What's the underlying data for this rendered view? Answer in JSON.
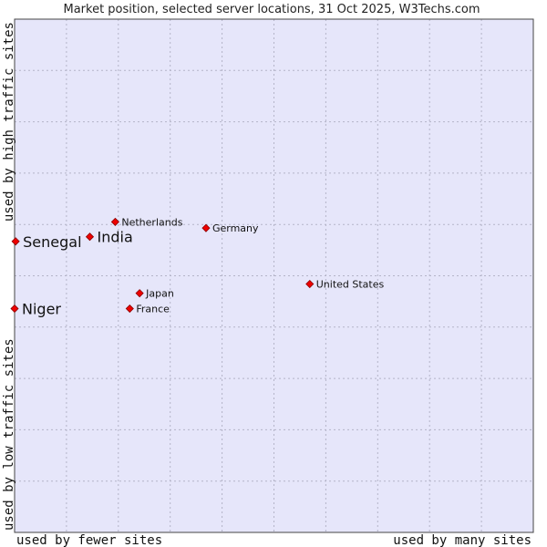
{
  "chart_data": {
    "type": "scatter",
    "title": "Market position, selected server locations, 31 Oct 2025, W3Techs.com",
    "xlabel_left": "used by fewer sites",
    "xlabel_right": "used by many sites",
    "ylabel_bottom": "used by low traffic sites",
    "ylabel_top": "used by high traffic sites",
    "xlim": [
      0,
      100
    ],
    "ylim": [
      0,
      100
    ],
    "grid": true,
    "colors": {
      "plot_bg": "#e6e6fa",
      "grid": "#b4b4c8",
      "border": "#444444",
      "marker": "#ee0000",
      "marker_edge": "#880000"
    },
    "points": [
      {
        "name": "Netherlands",
        "x": 19.4,
        "y": 60.5,
        "highlight": false
      },
      {
        "name": "Germany",
        "x": 36.9,
        "y": 59.3,
        "highlight": false
      },
      {
        "name": "India",
        "x": 14.5,
        "y": 57.6,
        "highlight": true
      },
      {
        "name": "Senegal",
        "x": 0.2,
        "y": 56.7,
        "highlight": true
      },
      {
        "name": "United States",
        "x": 56.9,
        "y": 48.4,
        "highlight": false
      },
      {
        "name": "Japan",
        "x": 24.1,
        "y": 46.6,
        "highlight": false
      },
      {
        "name": "France",
        "x": 22.2,
        "y": 43.6,
        "highlight": false
      },
      {
        "name": "Niger",
        "x": 0.0,
        "y": 43.6,
        "highlight": true
      }
    ]
  }
}
